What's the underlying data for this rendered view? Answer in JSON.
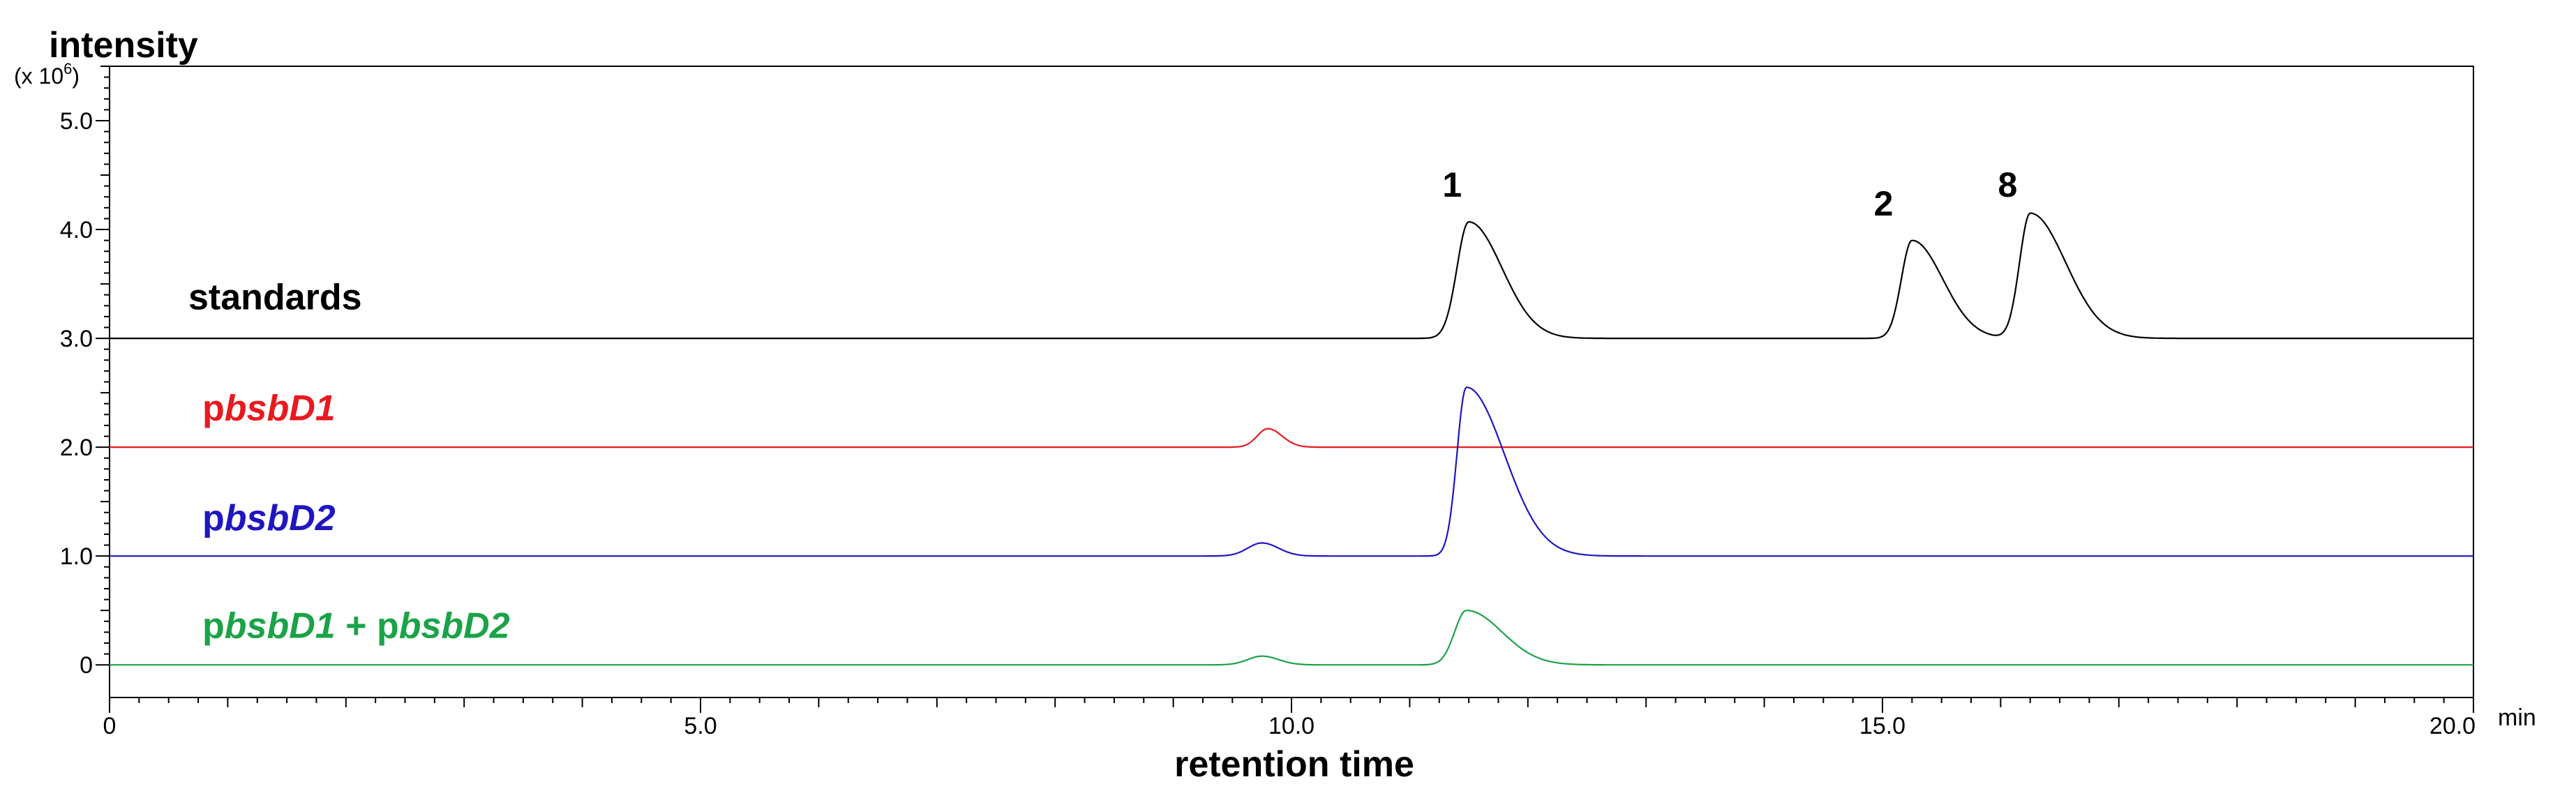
{
  "chart_data": {
    "type": "line",
    "ylabel": "intensity",
    "yunit_prefix": "(x 10",
    "yunit_exponent": "6",
    "yunit_suffix": ")",
    "xlabel": "retention time",
    "xunit": "min",
    "xlim": [
      0,
      20
    ],
    "ylim": [
      -0.3,
      5.5
    ],
    "x_ticks": [
      "0",
      "5.0",
      "10.0",
      "15.0",
      "20.0"
    ],
    "x_tick_values": [
      0,
      5,
      10,
      15,
      20
    ],
    "y_ticks": [
      "0",
      "1.0",
      "2.0",
      "3.0",
      "4.0",
      "5.0"
    ],
    "y_tick_values": [
      0,
      1,
      2,
      3,
      4,
      5
    ],
    "grid": false,
    "series": [
      {
        "name": "standards",
        "label_parts": [
          {
            "text": "standards",
            "italic": false
          }
        ],
        "color": "#000000",
        "baseline": 3.0,
        "peaks": [
          {
            "rt": 11.5,
            "height": 1.07,
            "rise": 0.1,
            "tail": 0.28
          },
          {
            "rt": 15.25,
            "height": 0.9,
            "rise": 0.09,
            "tail": 0.26
          },
          {
            "rt": 16.25,
            "height": 1.15,
            "rise": 0.09,
            "tail": 0.3
          }
        ]
      },
      {
        "name": "pbsbD1",
        "label_parts": [
          {
            "text": "p",
            "italic": false
          },
          {
            "text": "bsbD1",
            "italic": true
          }
        ],
        "color": "#e8191f",
        "baseline": 2.0,
        "peaks": [
          {
            "rt": 9.8,
            "height": 0.17,
            "rise": 0.09,
            "tail": 0.12
          }
        ]
      },
      {
        "name": "pbsbD2",
        "label_parts": [
          {
            "text": "p",
            "italic": false
          },
          {
            "text": "bsbD2",
            "italic": true
          }
        ],
        "color": "#1f16c2",
        "baseline": 1.0,
        "peaks": [
          {
            "rt": 9.75,
            "height": 0.12,
            "rise": 0.12,
            "tail": 0.14
          },
          {
            "rt": 11.48,
            "height": 1.55,
            "rise": 0.08,
            "tail": 0.32
          }
        ]
      },
      {
        "name": "pbsbD1 + pbsbD2",
        "label_parts": [
          {
            "text": "p",
            "italic": false
          },
          {
            "text": "bsbD1",
            "italic": true
          },
          {
            "text": " + p",
            "italic": false
          },
          {
            "text": "bsbD2",
            "italic": true
          }
        ],
        "color": "#1aa347",
        "baseline": 0.0,
        "peaks": [
          {
            "rt": 9.75,
            "height": 0.08,
            "rise": 0.12,
            "tail": 0.14
          },
          {
            "rt": 11.48,
            "height": 0.5,
            "rise": 0.1,
            "tail": 0.3
          }
        ]
      }
    ],
    "annotations": [
      {
        "text": "1",
        "x": 11.3,
        "y": 4.3
      },
      {
        "text": "2",
        "x": 14.95,
        "y": 4.13
      },
      {
        "text": "8",
        "x": 16.0,
        "y": 4.3
      }
    ]
  }
}
